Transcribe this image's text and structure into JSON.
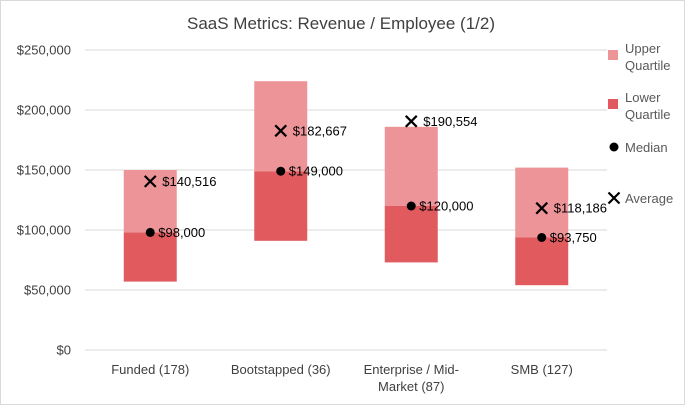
{
  "chart_data": {
    "type": "bar",
    "subtype": "stacked-range-with-markers",
    "title": "SaaS Metrics: Revenue / Employee (1/2)",
    "xlabel": "",
    "ylabel": "",
    "ylim": [
      0,
      250000
    ],
    "yticks": [
      0,
      50000,
      100000,
      150000,
      200000,
      250000
    ],
    "ytick_labels": [
      "$0",
      "$50,000",
      "$100,000",
      "$150,000",
      "$200,000",
      "$250,000"
    ],
    "grid": true,
    "categories": [
      {
        "lines": [
          "Funded (178)"
        ]
      },
      {
        "lines": [
          "Bootstapped (36)"
        ]
      },
      {
        "lines": [
          "Enterprise / Mid-",
          "Market (87)"
        ]
      },
      {
        "lines": [
          "SMB (127)"
        ]
      }
    ],
    "series": [
      {
        "name": "Lower Quartile",
        "color": "#e05a5e",
        "ranges": [
          [
            57000,
            98000
          ],
          [
            91000,
            149000
          ],
          [
            73000,
            120000
          ],
          [
            54000,
            93750
          ]
        ]
      },
      {
        "name": "Upper Quartile",
        "color": "#ec9497",
        "ranges": [
          [
            98000,
            150000
          ],
          [
            149000,
            224000
          ],
          [
            120000,
            186000
          ],
          [
            93750,
            152000
          ]
        ]
      },
      {
        "name": "Median",
        "marker": "circle",
        "values": [
          98000,
          149000,
          120000,
          93750
        ],
        "labels": [
          "$98,000",
          "$149,000",
          "$120,000",
          "$93,750"
        ]
      },
      {
        "name": "Average",
        "marker": "x",
        "values": [
          140516,
          182667,
          190554,
          118186
        ],
        "labels": [
          "$140,516",
          "$182,667",
          "$190,554",
          "$118,186"
        ]
      }
    ],
    "legend": {
      "position": "right",
      "items": [
        {
          "lines": [
            "Upper",
            "Quartile"
          ],
          "symbol": "box",
          "color": "#ec9497"
        },
        {
          "lines": [
            "Lower",
            "Quartile"
          ],
          "symbol": "box",
          "color": "#e05a5e"
        },
        {
          "lines": [
            "Median"
          ],
          "symbol": "circle",
          "color": "#000000"
        },
        {
          "lines": [
            "Average"
          ],
          "symbol": "x",
          "color": "#000000"
        }
      ]
    }
  }
}
